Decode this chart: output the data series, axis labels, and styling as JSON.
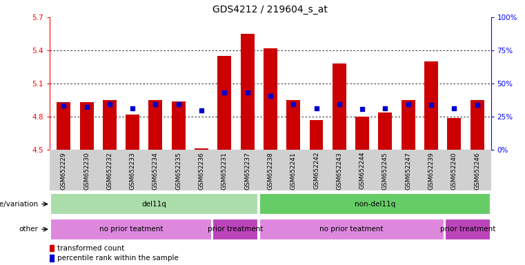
{
  "title": "GDS4212 / 219604_s_at",
  "samples": [
    "GSM652229",
    "GSM652230",
    "GSM652232",
    "GSM652233",
    "GSM652234",
    "GSM652235",
    "GSM652236",
    "GSM652231",
    "GSM652237",
    "GSM652238",
    "GSM652241",
    "GSM652242",
    "GSM652243",
    "GSM652244",
    "GSM652245",
    "GSM652247",
    "GSM652239",
    "GSM652240",
    "GSM652246"
  ],
  "red_values": [
    4.93,
    4.93,
    4.95,
    4.82,
    4.95,
    4.94,
    4.51,
    5.35,
    5.55,
    5.42,
    4.95,
    4.77,
    5.28,
    4.8,
    4.84,
    4.95,
    5.3,
    4.79,
    4.95
  ],
  "blue_values": [
    4.9,
    4.89,
    4.91,
    4.875,
    4.91,
    4.91,
    4.855,
    5.02,
    5.02,
    4.99,
    4.91,
    4.875,
    4.91,
    4.87,
    4.875,
    4.91,
    4.905,
    4.875,
    4.905
  ],
  "ymin": 4.5,
  "ymax": 5.7,
  "yticks_left": [
    4.5,
    4.8,
    5.1,
    5.4,
    5.7
  ],
  "ytick_labels_left": [
    "4.5",
    "4.8",
    "5.1",
    "5.4",
    "5.7"
  ],
  "right_yticks_pct": [
    0,
    25,
    50,
    75,
    100
  ],
  "right_ytick_labels": [
    "0%",
    "25%",
    "50%",
    "75%",
    "100%"
  ],
  "bar_color": "#cc0000",
  "dot_color": "#0000cc",
  "plot_bg_color": "#ffffff",
  "xtick_bg_color": "#d0d0d0",
  "genotype_groups": [
    {
      "label": "del11q",
      "start": 0,
      "end": 9,
      "color": "#aaddaa"
    },
    {
      "label": "non-del11q",
      "start": 9,
      "end": 19,
      "color": "#66cc66"
    }
  ],
  "treatment_groups": [
    {
      "label": "no prior teatment",
      "start": 0,
      "end": 7,
      "color": "#dd88dd"
    },
    {
      "label": "prior treatment",
      "start": 7,
      "end": 9,
      "color": "#bb44bb"
    },
    {
      "label": "no prior teatment",
      "start": 9,
      "end": 17,
      "color": "#dd88dd"
    },
    {
      "label": "prior treatment",
      "start": 17,
      "end": 19,
      "color": "#bb44bb"
    }
  ],
  "label_fontsize": 7.5,
  "title_fontsize": 10,
  "tick_fontsize": 7.5,
  "xtick_fontsize": 6.5
}
